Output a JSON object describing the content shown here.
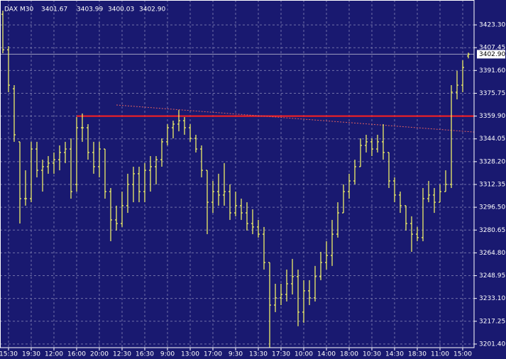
{
  "chart_data": {
    "type": "ohlc",
    "title": "DAX M30",
    "header_values": [
      "3401.67",
      "3403.99",
      "3400.03",
      "3402.90"
    ],
    "color": "#ffff66",
    "grid": true,
    "categories": [
      null,
      "15:30",
      null,
      null,
      null,
      "19:30",
      null,
      null,
      null,
      "12:00",
      null,
      null,
      null,
      "16:00",
      null,
      null,
      null,
      "20:00",
      null,
      null,
      null,
      "12:30",
      null,
      null,
      null,
      "16:30",
      null,
      null,
      null,
      "9:00",
      null,
      null,
      null,
      "13:00",
      null,
      null,
      null,
      "17:00",
      null,
      null,
      null,
      "9:30",
      null,
      null,
      null,
      "13:30",
      null,
      null,
      null,
      "17:30",
      null,
      null,
      null,
      "10:00",
      null,
      null,
      null,
      "14:00",
      null,
      null,
      null,
      "18:00",
      null,
      null,
      null,
      "10:30",
      null,
      null,
      null,
      "14:30",
      null,
      null,
      null,
      "18:30",
      null,
      null,
      null,
      "11:00",
      null,
      null,
      null,
      "15:00",
      null
    ],
    "open": [
      3430.7,
      3406.0,
      3378.9,
      3342.0,
      3302.5,
      3302.5,
      3337.0,
      3322.2,
      3324.7,
      3327.2,
      3329.6,
      3334.6,
      3337.0,
      3312.4,
      3351.8,
      3351.8,
      3334.6,
      3324.7,
      3337.0,
      3307.4,
      3287.7,
      3285.2,
      3297.6,
      3312.4,
      3319.8,
      3307.4,
      3322.2,
      3324.7,
      3329.6,
      3342.0,
      3351.8,
      3354.3,
      3356.7,
      3351.8,
      3344.4,
      3337.0,
      3322.2,
      3300.0,
      3307.4,
      3305.0,
      3307.4,
      3292.6,
      3297.6,
      3292.6,
      3285.2,
      3282.8,
      3277.8,
      3258.1,
      3228.5,
      3233.5,
      3235.9,
      3243.3,
      3248.3,
      3223.6,
      3238.4,
      3233.5,
      3248.3,
      3258.1,
      3263.0,
      3277.8,
      3292.6,
      3307.4,
      3314.8,
      3324.7,
      3339.5,
      3342.0,
      3337.0,
      3342.0,
      3334.6,
      3314.8,
      3305.0,
      3297.6,
      3285.2,
      3277.8,
      3275.4,
      3302.5,
      3305.0,
      3300.0,
      3307.4,
      3312.4,
      3376.5,
      3381.4,
      3401.67
    ],
    "high": [
      3433.2,
      3408.5,
      3381.4,
      3342.0,
      3322.2,
      3342.0,
      3342.0,
      3329.6,
      3332.1,
      3334.6,
      3339.5,
      3342.0,
      3344.4,
      3359.2,
      3361.7,
      3354.3,
      3342.0,
      3342.0,
      3337.0,
      3309.9,
      3297.6,
      3307.4,
      3319.8,
      3324.7,
      3324.7,
      3327.2,
      3332.1,
      3332.1,
      3344.4,
      3354.3,
      3356.7,
      3364.1,
      3359.2,
      3354.3,
      3346.9,
      3339.5,
      3322.2,
      3314.8,
      3319.8,
      3327.2,
      3312.4,
      3307.4,
      3302.5,
      3300.0,
      3295.1,
      3287.7,
      3282.8,
      3258.1,
      3243.3,
      3243.3,
      3253.2,
      3260.6,
      3253.2,
      3245.8,
      3245.8,
      3255.7,
      3265.5,
      3272.9,
      3287.7,
      3300.0,
      3312.4,
      3319.8,
      3329.6,
      3344.4,
      3346.9,
      3344.4,
      3346.9,
      3354.3,
      3334.6,
      3317.3,
      3307.4,
      3297.6,
      3290.2,
      3282.8,
      3309.9,
      3314.8,
      3309.9,
      3312.4,
      3322.2,
      3381.4,
      3391.3,
      3398.7,
      3403.99
    ],
    "low": [
      3403.6,
      3376.5,
      3342.0,
      3285.2,
      3297.6,
      3300.0,
      3317.3,
      3307.4,
      3319.8,
      3319.8,
      3322.2,
      3327.2,
      3302.5,
      3307.4,
      3342.0,
      3329.6,
      3319.8,
      3317.3,
      3302.5,
      3272.9,
      3280.3,
      3282.8,
      3292.6,
      3300.0,
      3300.0,
      3300.0,
      3307.4,
      3312.4,
      3324.7,
      3339.5,
      3344.4,
      3349.3,
      3346.9,
      3342.0,
      3334.6,
      3317.3,
      3277.8,
      3292.6,
      3297.6,
      3297.6,
      3287.7,
      3290.2,
      3287.7,
      3280.3,
      3277.8,
      3275.4,
      3253.2,
      3199.0,
      3223.6,
      3228.5,
      3231.0,
      3235.9,
      3213.8,
      3216.2,
      3228.5,
      3231.0,
      3245.8,
      3253.2,
      3255.7,
      3275.4,
      3292.6,
      3302.5,
      3312.4,
      3324.7,
      3334.6,
      3332.1,
      3334.6,
      3329.6,
      3309.9,
      3300.0,
      3292.6,
      3280.3,
      3265.5,
      3272.9,
      3272.9,
      3300.0,
      3292.6,
      3300.0,
      3307.4,
      3309.9,
      3371.5,
      3376.5,
      3400.03
    ],
    "close": [
      3406.0,
      3381.4,
      3346.9,
      3302.5,
      3302.5,
      3337.0,
      3322.2,
      3324.7,
      3327.2,
      3329.6,
      3334.6,
      3337.0,
      3307.4,
      3351.8,
      3351.8,
      3334.6,
      3324.7,
      3337.0,
      3307.4,
      3287.7,
      3285.2,
      3297.6,
      3312.4,
      3319.8,
      3307.4,
      3322.2,
      3324.7,
      3329.6,
      3342.0,
      3351.8,
      3354.3,
      3356.7,
      3351.8,
      3344.4,
      3337.0,
      3322.2,
      3300.0,
      3307.4,
      3305.0,
      3307.4,
      3292.6,
      3297.6,
      3292.6,
      3285.2,
      3282.8,
      3277.8,
      3258.1,
      3228.5,
      3233.5,
      3235.9,
      3243.3,
      3248.3,
      3223.6,
      3238.4,
      3233.5,
      3248.3,
      3258.1,
      3263.0,
      3277.8,
      3292.6,
      3307.4,
      3314.8,
      3324.7,
      3339.5,
      3342.0,
      3337.0,
      3342.0,
      3334.6,
      3314.8,
      3305.0,
      3297.6,
      3285.2,
      3277.8,
      3275.4,
      3302.5,
      3305.0,
      3300.0,
      3307.4,
      3312.4,
      3376.5,
      3381.4,
      3393.7,
      3402.9
    ],
    "ylim": [
      3198.9,
      3440.6
    ],
    "yticks": [
      {
        "value": 3423.3,
        "label": "3423.30"
      },
      {
        "value": 3407.45,
        "label": "3407.45"
      },
      {
        "value": 3391.6,
        "label": "3391.60"
      },
      {
        "value": 3375.75,
        "label": "3375.75"
      },
      {
        "value": 3359.9,
        "label": "3359.90"
      },
      {
        "value": 3344.05,
        "label": "3344.05"
      },
      {
        "value": 3328.2,
        "label": "3328.20"
      },
      {
        "value": 3312.35,
        "label": "3312.35"
      },
      {
        "value": 3296.5,
        "label": "3296.50"
      },
      {
        "value": 3280.65,
        "label": "3280.65"
      },
      {
        "value": 3264.8,
        "label": "3264.80"
      },
      {
        "value": 3248.95,
        "label": "3248.95"
      },
      {
        "value": 3233.1,
        "label": "3233.10"
      },
      {
        "value": 3217.25,
        "label": "3217.25"
      },
      {
        "value": 3201.4,
        "label": "3201.40"
      }
    ],
    "last_price": {
      "value": 3402.9,
      "label": "3402.90"
    },
    "level_line": {
      "value": 3359.9,
      "from": 13,
      "color": "#ff2020"
    },
    "trend_line": {
      "x": [
        20,
        83
      ],
      "y": [
        3367.6,
        3348.8
      ],
      "color": "#e06060"
    }
  }
}
